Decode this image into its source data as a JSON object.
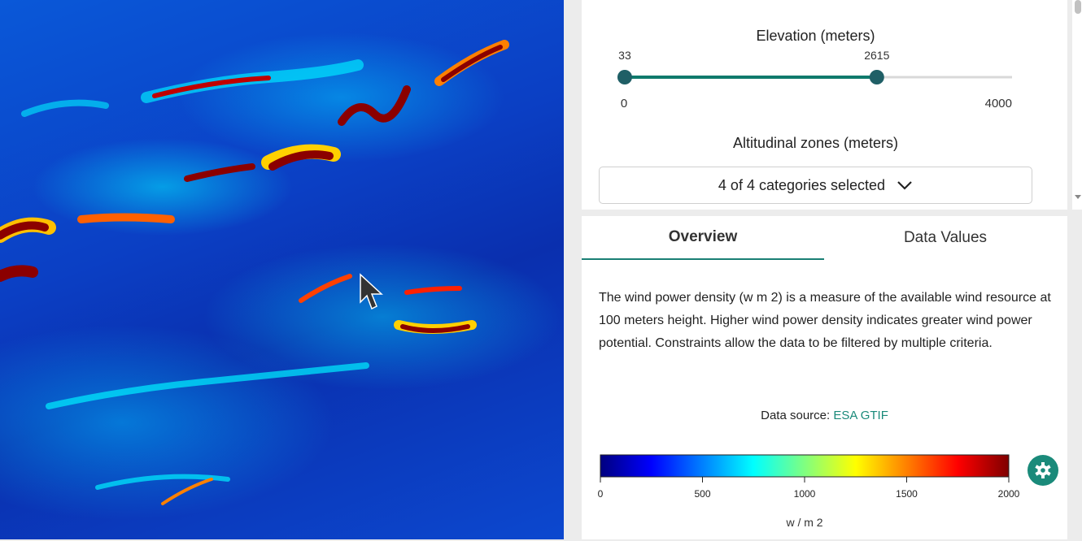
{
  "elevation_filter": {
    "label": "Elevation (meters)",
    "min": 0,
    "max": 4000,
    "low": 33,
    "high": 2615,
    "color": "#0f7a6c"
  },
  "altitudinal_zones": {
    "label": "Altitudinal zones (meters)",
    "dropdown": "4 of 4 categories selected"
  },
  "tabs": [
    "Overview",
    "Data Values"
  ],
  "active_tab": 0,
  "description": "The wind power density (w m 2) is a measure of the available wind resource at 100 meters height. Higher wind power density indicates greater wind power potential. Constraints allow the data to be filtered by multiple criteria.",
  "data_source": {
    "label": "Data source:",
    "link": "ESA GTIF"
  },
  "legend": {
    "min": 0,
    "max": 2000,
    "ticks": [
      0,
      500,
      1000,
      1500,
      2000
    ],
    "unit": "w / m 2",
    "colors": [
      "#00007f",
      "#0000ff",
      "#0080ff",
      "#00ffff",
      "#80ff80",
      "#ffff00",
      "#ff8000",
      "#ff0000",
      "#7f0000"
    ]
  }
}
